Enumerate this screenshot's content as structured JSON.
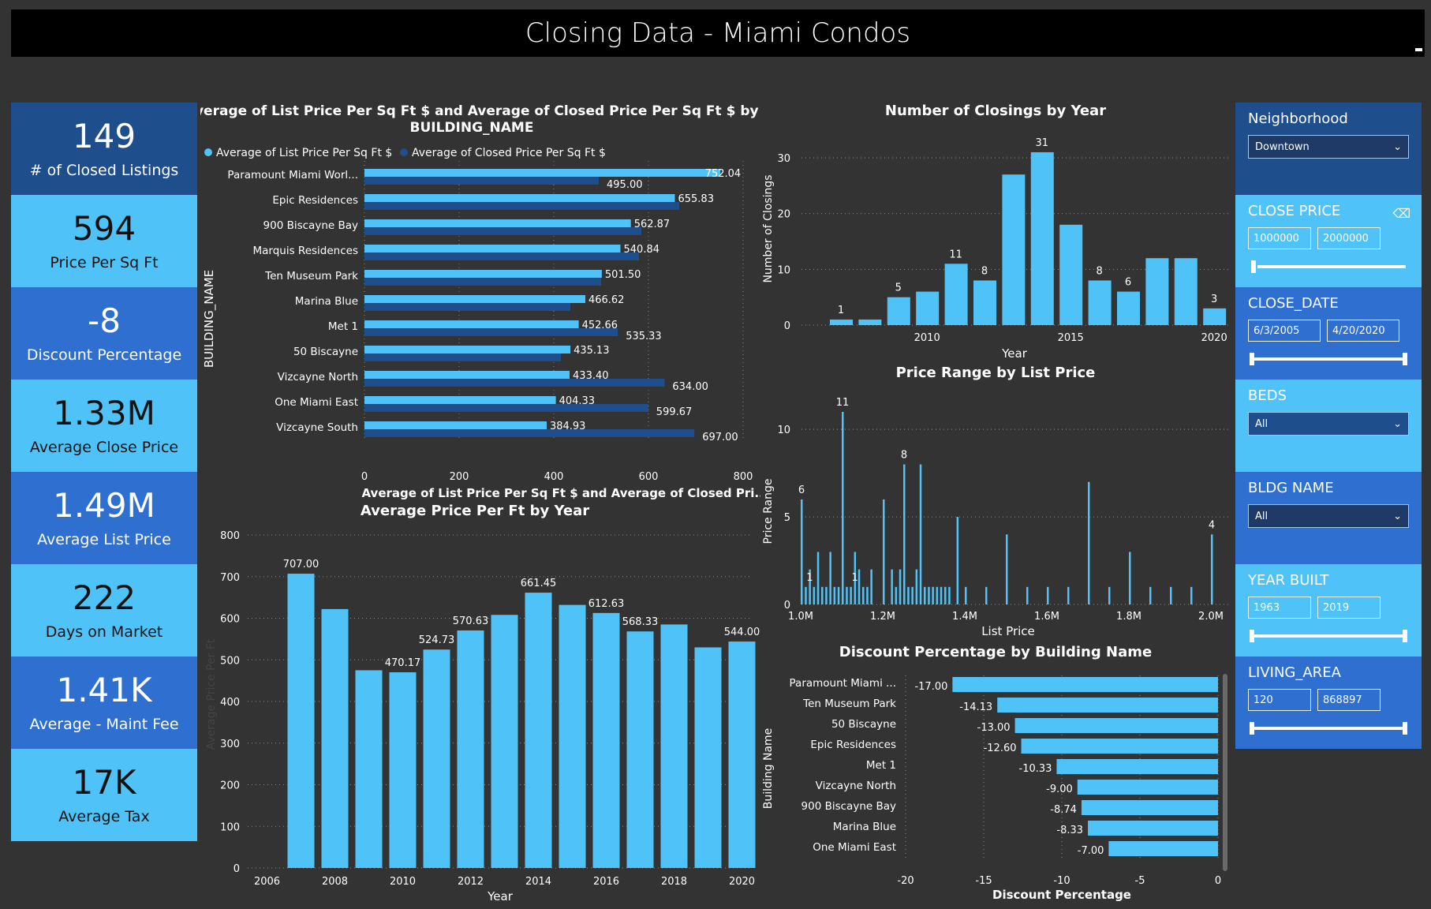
{
  "title": "Closing Data - Miami Condos",
  "kpis": [
    {
      "value": "149",
      "label": "# of Closed Listings"
    },
    {
      "value": "594",
      "label": "Price Per Sq Ft"
    },
    {
      "value": "-8",
      "label": "Discount Percentage"
    },
    {
      "value": "1.33M",
      "label": "Average Close Price"
    },
    {
      "value": "1.49M",
      "label": "Average List Price"
    },
    {
      "value": "222",
      "label": "Days on Market"
    },
    {
      "value": "1.41K",
      "label": "Average - Maint Fee"
    },
    {
      "value": "17K",
      "label": "Average Tax"
    }
  ],
  "filters": {
    "neighborhood": {
      "label": "Neighborhood",
      "value": "Downtown"
    },
    "close_price": {
      "label": "CLOSE PRICE",
      "min": "1000000",
      "max": "2000000"
    },
    "close_date": {
      "label": "CLOSE_DATE",
      "min": "6/3/2005",
      "max": "4/20/2020"
    },
    "beds": {
      "label": "BEDS",
      "value": "All"
    },
    "bldg_name": {
      "label": "BLDG NAME",
      "value": "All"
    },
    "year_built": {
      "label": "YEAR BUILT",
      "min": "1963",
      "max": "2019"
    },
    "living_area": {
      "label": "LIVING_AREA",
      "min": "120",
      "max": "868897"
    }
  },
  "colors": {
    "light": "#4FC3F7",
    "dark": "#1F4E8C",
    "mid": "#2E6FD0"
  },
  "chart_data": [
    {
      "type": "bar",
      "orientation": "horizontal",
      "title": "Average of List Price Per Sq Ft $ and Average of Closed Price Per Sq Ft $ by BUILDING_NAME",
      "xlabel": "Average of List Price Per Sq Ft $ and Average of Closed Pri...",
      "ylabel": "BUILDING_NAME",
      "categories": [
        "Paramount Miami Worl...",
        "Epic Residences",
        "900 Biscayne Bay",
        "Marquis Residences",
        "Ten Museum Park",
        "Marina Blue",
        "Met 1",
        "50 Biscayne",
        "Vizcayne North",
        "One Miami East",
        "Vizcayne South"
      ],
      "series": [
        {
          "name": "Average of List Price Per Sq Ft $",
          "values": [
            752.04,
            655.83,
            562.87,
            540.84,
            501.5,
            466.62,
            452.66,
            435.13,
            433.4,
            404.33,
            384.93
          ]
        },
        {
          "name": "Average of Closed Price Per Sq Ft $",
          "values": [
            495.0,
            665,
            585,
            580,
            500,
            435,
            535.33,
            415,
            634.0,
            599.67,
            697.0
          ]
        }
      ],
      "labels_list": [
        "752.04",
        "655.83",
        "562.87",
        "540.84",
        "501.50",
        "466.62",
        "452.66",
        "435.13",
        "433.40",
        "404.33",
        "384.93"
      ],
      "labels_closed": [
        "495.00",
        "",
        "",
        "",
        "",
        "",
        "535.33",
        "",
        "634.00",
        "599.67",
        "697.00"
      ],
      "xticks": [
        "0",
        "200",
        "400",
        "600",
        "800"
      ],
      "xlim": [
        0,
        800
      ]
    },
    {
      "type": "bar",
      "title": "Number of Closings by Year",
      "xlabel": "Year",
      "ylabel": "Number of Closings",
      "categories": [
        2007,
        2008,
        2009,
        2010,
        2011,
        2012,
        2013,
        2014,
        2015,
        2016,
        2017,
        2018,
        2019,
        2020
      ],
      "values": [
        1,
        1,
        5,
        6,
        11,
        8,
        27,
        31,
        18,
        8,
        6,
        12,
        12,
        3
      ],
      "value_labels": [
        "1",
        "",
        "5",
        "",
        "11",
        "8",
        "",
        "31",
        "",
        "8",
        "6",
        "",
        "",
        "3"
      ],
      "xticks": [
        "2010",
        "2015",
        "2020"
      ],
      "yticks": [
        "0",
        "10",
        "20",
        "30"
      ],
      "ylim": [
        0,
        31
      ]
    },
    {
      "type": "bar",
      "title": "Price Range by List Price",
      "xlabel": "List Price",
      "ylabel": "Price Range",
      "x": [
        1.0,
        1.01,
        1.02,
        1.03,
        1.04,
        1.05,
        1.06,
        1.07,
        1.08,
        1.09,
        1.1,
        1.11,
        1.12,
        1.13,
        1.14,
        1.15,
        1.16,
        1.17,
        1.2,
        1.22,
        1.23,
        1.24,
        1.25,
        1.26,
        1.27,
        1.28,
        1.29,
        1.3,
        1.31,
        1.32,
        1.33,
        1.34,
        1.35,
        1.36,
        1.38,
        1.4,
        1.45,
        1.5,
        1.55,
        1.6,
        1.65,
        1.7,
        1.75,
        1.8,
        1.85,
        1.9,
        1.95,
        2.0
      ],
      "values": [
        6,
        1,
        2,
        1,
        3,
        1,
        1,
        3,
        1,
        1,
        11,
        1,
        1,
        3,
        2,
        1,
        1,
        2,
        6,
        2,
        1,
        2,
        8,
        1,
        1,
        2,
        8,
        1,
        1,
        1,
        1,
        1,
        1,
        1,
        5,
        1,
        1,
        4,
        1,
        1,
        1,
        7,
        1,
        3,
        1,
        1,
        1,
        4
      ],
      "value_labels": {
        "6": "6",
        "11": "11",
        "8": "8",
        "4": "4",
        "1": "1"
      },
      "xticks": [
        "1.0M",
        "1.2M",
        "1.4M",
        "1.6M",
        "1.8M",
        "2.0M"
      ],
      "yticks": [
        "0",
        "5",
        "10"
      ],
      "ylim": [
        0,
        11
      ]
    },
    {
      "type": "bar",
      "title": "Average Price Per Ft by Year",
      "xlabel": "Year",
      "ylabel": "Average Price Per Ft",
      "categories": [
        2007,
        2008,
        2009,
        2010,
        2011,
        2012,
        2013,
        2014,
        2015,
        2016,
        2017,
        2018,
        2019,
        2020
      ],
      "values": [
        707.0,
        622,
        475,
        470.17,
        524.73,
        570.63,
        608,
        661.45,
        632,
        612.63,
        568.33,
        585,
        530,
        544.0
      ],
      "value_labels": [
        "707.00",
        "",
        "",
        "470.17",
        "524.73",
        "570.63",
        "",
        "661.45",
        "",
        "612.63",
        "568.33",
        "",
        "",
        "544.00"
      ],
      "xticks": [
        "2006",
        "2008",
        "2010",
        "2012",
        "2014",
        "2016",
        "2018",
        "2020"
      ],
      "yticks": [
        "0",
        "100",
        "200",
        "300",
        "400",
        "500",
        "600",
        "700",
        "800"
      ],
      "ylim": [
        0,
        800
      ]
    },
    {
      "type": "bar",
      "orientation": "horizontal",
      "title": "Discount Percentage by Building Name",
      "xlabel": "Discount Percentage",
      "ylabel": "Building Name",
      "categories": [
        "Paramount Miami ...",
        "Ten Museum Park",
        "50 Biscayne",
        "Epic Residences",
        "Met 1",
        "Vizcayne North",
        "900 Biscayne Bay",
        "Marina Blue",
        "One Miami East"
      ],
      "values": [
        -17.0,
        -14.13,
        -13.0,
        -12.6,
        -10.33,
        -9.0,
        -8.74,
        -8.33,
        -7.0
      ],
      "value_labels": [
        "-17.00",
        "-14.13",
        "-13.00",
        "-12.60",
        "-10.33",
        "-9.00",
        "-8.74",
        "-8.33",
        "-7.00"
      ],
      "xticks": [
        "-20",
        "-15",
        "-10",
        "-5",
        "0"
      ],
      "xlim": [
        -20,
        0
      ]
    }
  ]
}
